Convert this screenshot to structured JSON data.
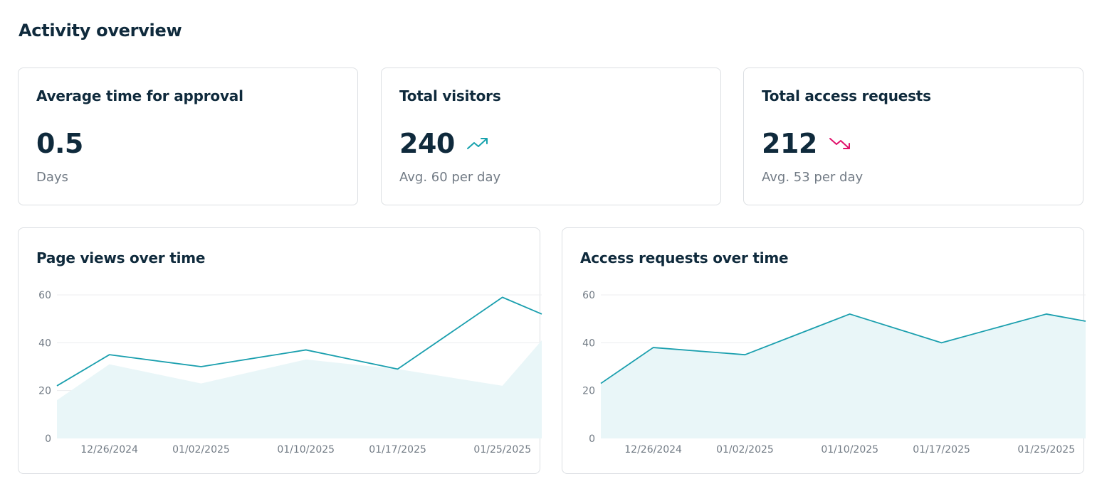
{
  "page": {
    "title": "Activity overview"
  },
  "stats": [
    {
      "title": "Average time for approval",
      "value": "0.5",
      "sub": "Days",
      "trend": null
    },
    {
      "title": "Total visitors",
      "value": "240",
      "sub": "Avg. 60 per day",
      "trend": "trend-up-icon",
      "trend_color": "#17a2ad"
    },
    {
      "title": "Total access requests",
      "value": "212",
      "sub": "Avg. 53 per day",
      "trend": "trend-down-icon",
      "trend_color": "#e0126b"
    }
  ],
  "colors": {
    "line": "#1a9fae",
    "area": "#e9f6f8",
    "grid": "#ecedef"
  },
  "chart_data": [
    {
      "type": "line",
      "title": "Page views over time",
      "ylim": [
        0,
        60
      ],
      "yticks": [
        0,
        20,
        40,
        60
      ],
      "xticks": [
        "12/26/2024",
        "01/02/2025",
        "01/10/2025",
        "01/17/2025",
        "01/25/2025"
      ],
      "grid": true,
      "series": [
        {
          "kind": "line",
          "x": [
            "12/22/2024",
            "12/26/2024",
            "01/02/2025",
            "01/10/2025",
            "01/17/2025",
            "01/25/2025",
            "01/28/2025"
          ],
          "values": [
            22,
            35,
            30,
            37,
            29,
            59,
            52
          ]
        },
        {
          "kind": "area",
          "x": [
            "12/22/2024",
            "12/26/2024",
            "01/02/2025",
            "01/10/2025",
            "01/17/2025",
            "01/25/2025",
            "01/28/2025"
          ],
          "values": [
            16,
            31,
            23,
            33,
            29,
            22,
            41
          ]
        }
      ]
    },
    {
      "type": "area",
      "title": "Access requests over time",
      "ylim": [
        0,
        60
      ],
      "yticks": [
        0,
        20,
        40,
        60
      ],
      "xticks": [
        "12/26/2024",
        "01/02/2025",
        "01/10/2025",
        "01/17/2025",
        "01/25/2025"
      ],
      "grid": true,
      "series": [
        {
          "kind": "line+area",
          "x": [
            "12/22/2024",
            "12/26/2024",
            "01/02/2025",
            "01/10/2025",
            "01/17/2025",
            "01/25/2025",
            "01/28/2025"
          ],
          "values": [
            23,
            38,
            35,
            52,
            40,
            52,
            49
          ]
        }
      ]
    }
  ]
}
